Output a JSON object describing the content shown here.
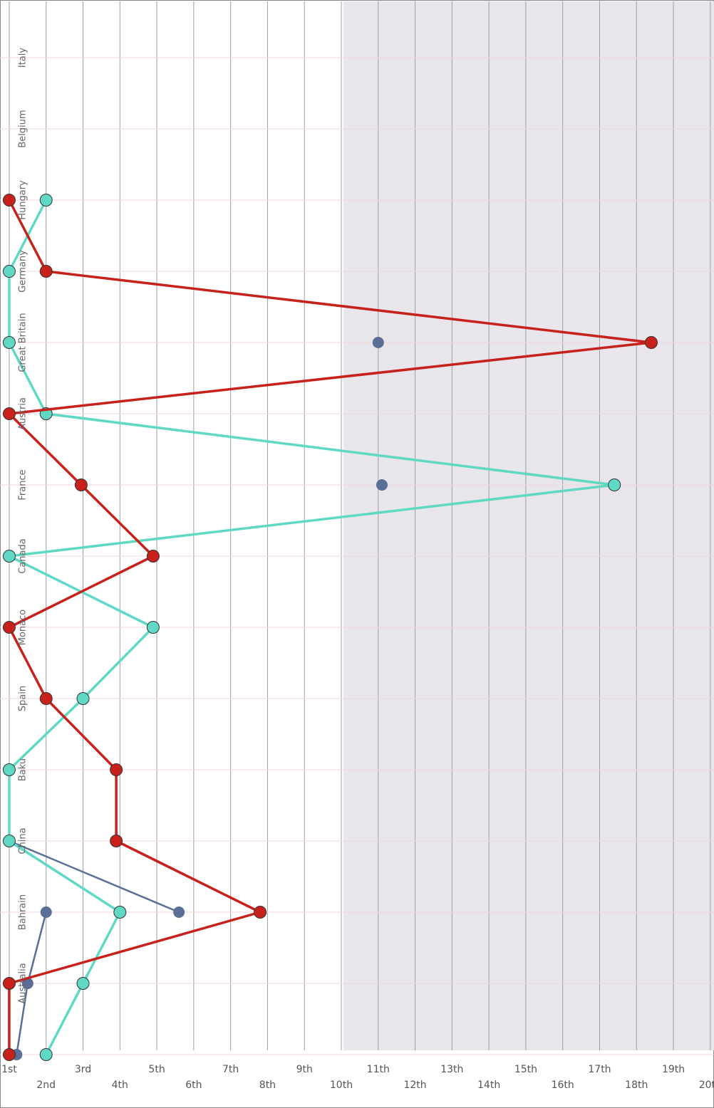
{
  "chart_data": {
    "type": "line",
    "categories": [
      null,
      "Australia",
      "Bahrain",
      "China",
      "Baku",
      "Spain",
      "Monaco",
      "Canada",
      "France",
      "Austria",
      "Great Britain",
      "Germany",
      "Hungary",
      "Belgium",
      "Italy"
    ],
    "series": [
      {
        "color": "#5a6e96",
        "values": [
          1.2,
          1.5,
          2.0,
          null,
          null,
          null,
          null,
          null,
          null,
          null,
          null,
          null,
          null,
          null,
          null
        ]
      },
      {
        "color": "#5a6e96",
        "values": [
          null,
          null,
          5.6,
          1.0,
          null,
          null,
          null,
          null,
          11.1,
          null,
          11.0,
          null,
          null,
          null,
          null
        ]
      },
      {
        "color": "#5fd8c4",
        "values": [
          2,
          3,
          4,
          1,
          1,
          3,
          4.9,
          1,
          17.4,
          2,
          1,
          1,
          2,
          null,
          null
        ]
      },
      {
        "color": "#c8201a",
        "values": [
          1,
          1,
          7.8,
          3.9,
          3.9,
          2,
          1,
          4.9,
          2.95,
          1,
          18.4,
          2,
          1,
          null,
          null
        ]
      }
    ],
    "xlim": [
      0.75,
      20.1
    ],
    "xticks": [
      {
        "value": 1,
        "label": "1st"
      },
      {
        "value": 2,
        "label": "2nd"
      },
      {
        "value": 3,
        "label": "3rd"
      },
      {
        "value": 4,
        "label": "4th"
      },
      {
        "value": 5,
        "label": "5th"
      },
      {
        "value": 6,
        "label": "6th"
      },
      {
        "value": 7,
        "label": "7th"
      },
      {
        "value": 8,
        "label": "8th"
      },
      {
        "value": 9,
        "label": "9th"
      },
      {
        "value": 10,
        "label": "10th"
      },
      {
        "value": 11,
        "label": "11th"
      },
      {
        "value": 12,
        "label": "12th"
      },
      {
        "value": 13,
        "label": "13th"
      },
      {
        "value": 14,
        "label": "14th"
      },
      {
        "value": 15,
        "label": "15th"
      },
      {
        "value": 16,
        "label": "16th"
      },
      {
        "value": 17,
        "label": "17th"
      },
      {
        "value": 18,
        "label": "18th"
      },
      {
        "value": 19,
        "label": "19th"
      },
      {
        "value": 20,
        "label": "20th"
      }
    ],
    "grid": true
  }
}
